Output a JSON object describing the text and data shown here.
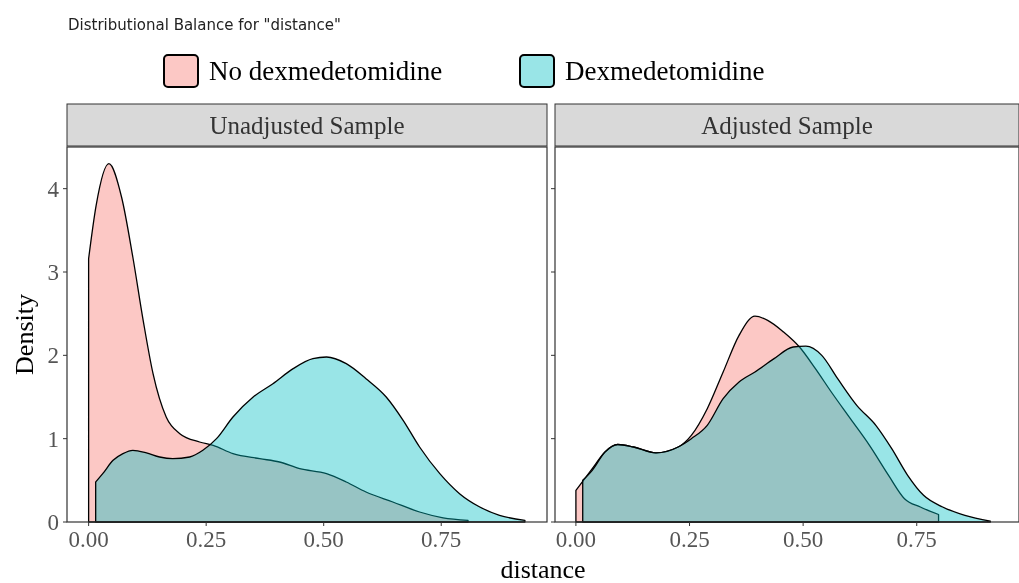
{
  "chart_data": [
    {
      "type": "area",
      "title": "Distributional Balance for \"distance\"",
      "subtitle": "Unadjusted Sample",
      "xlabel": "distance",
      "ylabel": "Density",
      "legend": "top",
      "xlim": [
        -0.046,
        0.975
      ],
      "ylim": [
        0,
        4.5
      ],
      "xticks": [
        {
          "value": 0,
          "label": "0.00"
        },
        {
          "value": 0.25,
          "label": "0.25"
        },
        {
          "value": 0.5,
          "label": "0.50"
        },
        {
          "value": 0.75,
          "label": "0.75"
        }
      ],
      "yticks": [
        0,
        1,
        2,
        3,
        4
      ],
      "series": [
        {
          "name": "No dexmedetomidine",
          "color": "#F8766D",
          "x": [
            0,
            0.016,
            0.043,
            0.07,
            0.094,
            0.116,
            0.137,
            0.165,
            0.194,
            0.236,
            0.265,
            0.307,
            0.364,
            0.406,
            0.449,
            0.506,
            0.548,
            0.59,
            0.647,
            0.704,
            0.754,
            0.807
          ],
          "values": [
            3.16,
            3.8,
            4.3,
            3.9,
            3.18,
            2.42,
            1.78,
            1.26,
            1.06,
            0.96,
            0.92,
            0.82,
            0.76,
            0.72,
            0.64,
            0.58,
            0.48,
            0.36,
            0.24,
            0.12,
            0.05,
            0.02
          ]
        },
        {
          "name": "Dexmedetomidine",
          "color": "#00BFC4",
          "x": [
            0.015,
            0.03,
            0.052,
            0.073,
            0.094,
            0.123,
            0.151,
            0.179,
            0.215,
            0.243,
            0.272,
            0.307,
            0.35,
            0.392,
            0.435,
            0.477,
            0.506,
            0.548,
            0.59,
            0.633,
            0.669,
            0.704,
            0.747,
            0.789,
            0.832,
            0.874,
            0.928
          ],
          "values": [
            0.48,
            0.58,
            0.74,
            0.82,
            0.86,
            0.83,
            0.78,
            0.76,
            0.78,
            0.86,
            1.0,
            1.26,
            1.5,
            1.66,
            1.84,
            1.96,
            1.98,
            1.9,
            1.72,
            1.5,
            1.22,
            0.9,
            0.58,
            0.34,
            0.18,
            0.08,
            0.02
          ]
        }
      ]
    },
    {
      "type": "area",
      "subtitle": "Adjusted Sample",
      "xlim": [
        -0.046,
        0.975
      ],
      "ylim": [
        0,
        4.5
      ],
      "xticks": [
        {
          "value": 0,
          "label": "0.00"
        },
        {
          "value": 0.25,
          "label": "0.25"
        },
        {
          "value": 0.5,
          "label": "0.50"
        },
        {
          "value": 0.75,
          "label": "0.75"
        }
      ],
      "yticks": [
        {
          "value": 0,
          "label": null
        },
        {
          "value": 1,
          "label": null
        },
        {
          "value": 2,
          "label": null
        },
        {
          "value": 3,
          "label": null
        },
        {
          "value": 4,
          "label": null
        }
      ],
      "tick_labels": "x",
      "series": [
        {
          "color": "#F8766D",
          "x": [
            0,
            0.036,
            0.064,
            0.092,
            0.127,
            0.176,
            0.225,
            0.254,
            0.289,
            0.324,
            0.359,
            0.394,
            0.422,
            0.457,
            0.492,
            0.527,
            0.562,
            0.604,
            0.646,
            0.688,
            0.723,
            0.758,
            0.798
          ],
          "values": [
            0.38,
            0.64,
            0.84,
            0.93,
            0.9,
            0.83,
            0.9,
            1.04,
            1.36,
            1.8,
            2.24,
            2.47,
            2.42,
            2.28,
            2.1,
            1.84,
            1.56,
            1.24,
            0.92,
            0.56,
            0.28,
            0.18,
            0.09
          ]
        },
        {
          "color": "#00BFC4",
          "x": [
            0.015,
            0.036,
            0.064,
            0.092,
            0.127,
            0.176,
            0.225,
            0.254,
            0.289,
            0.324,
            0.359,
            0.394,
            0.436,
            0.478,
            0.506,
            0.541,
            0.576,
            0.618,
            0.66,
            0.695,
            0.73,
            0.765,
            0.807,
            0.856,
            0.912
          ],
          "values": [
            0.5,
            0.62,
            0.84,
            0.93,
            0.9,
            0.83,
            0.9,
            1.0,
            1.16,
            1.48,
            1.68,
            1.8,
            1.96,
            2.1,
            2.11,
            2.0,
            1.72,
            1.4,
            1.16,
            0.88,
            0.56,
            0.32,
            0.18,
            0.08,
            0.01
          ]
        }
      ]
    }
  ]
}
